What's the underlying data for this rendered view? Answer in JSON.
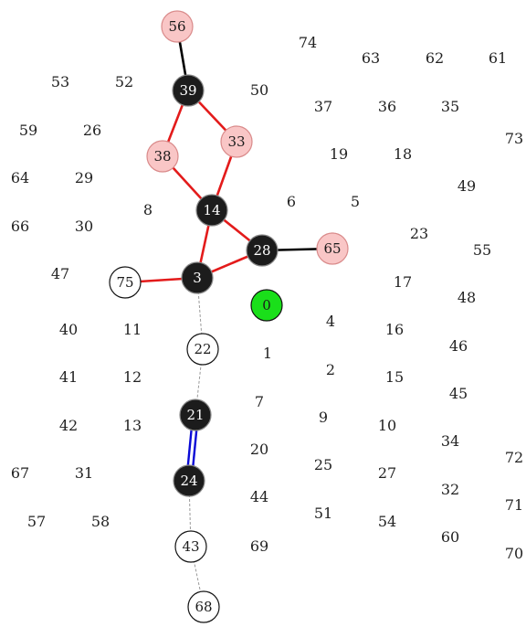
{
  "colors": {
    "black_node": "#1c1c1c",
    "pink_node": "#f9c6c6",
    "pink_stroke": "#d98a8a",
    "green_node": "#1adf1a",
    "white_node": "#ffffff",
    "red_edge": "#e31b1b",
    "blue_edge": "#0a0ad6",
    "dashed_edge": "#9a9a9a"
  },
  "nodes": [
    {
      "id": "56",
      "style": "pink"
    },
    {
      "id": "39",
      "style": "black"
    },
    {
      "id": "38",
      "style": "pink"
    },
    {
      "id": "33",
      "style": "pink"
    },
    {
      "id": "14",
      "style": "black"
    },
    {
      "id": "28",
      "style": "black"
    },
    {
      "id": "65",
      "style": "pink"
    },
    {
      "id": "3",
      "style": "black"
    },
    {
      "id": "75",
      "style": "white"
    },
    {
      "id": "0",
      "style": "green"
    },
    {
      "id": "22",
      "style": "white"
    },
    {
      "id": "21",
      "style": "black"
    },
    {
      "id": "24",
      "style": "black"
    },
    {
      "id": "43",
      "style": "white"
    },
    {
      "id": "68",
      "style": "white"
    }
  ],
  "edges": [
    {
      "from": "56",
      "to": "39",
      "kind": "black"
    },
    {
      "from": "39",
      "to": "38",
      "kind": "red"
    },
    {
      "from": "39",
      "to": "33",
      "kind": "red"
    },
    {
      "from": "38",
      "to": "14",
      "kind": "red"
    },
    {
      "from": "33",
      "to": "14",
      "kind": "red"
    },
    {
      "from": "14",
      "to": "28",
      "kind": "red"
    },
    {
      "from": "14",
      "to": "3",
      "kind": "red"
    },
    {
      "from": "28",
      "to": "3",
      "kind": "red"
    },
    {
      "from": "28",
      "to": "65",
      "kind": "black"
    },
    {
      "from": "3",
      "to": "75",
      "kind": "red"
    },
    {
      "from": "3",
      "to": "22",
      "kind": "dashed"
    },
    {
      "from": "22",
      "to": "21",
      "kind": "dashed"
    },
    {
      "from": "21",
      "to": "24",
      "kind": "double-blue"
    },
    {
      "from": "24",
      "to": "43",
      "kind": "dashed"
    },
    {
      "from": "43",
      "to": "68",
      "kind": "dashed"
    }
  ],
  "labels": [
    "74",
    "63",
    "62",
    "61",
    "53",
    "52",
    "50",
    "37",
    "36",
    "35",
    "59",
    "26",
    "73",
    "19",
    "18",
    "64",
    "29",
    "49",
    "8",
    "6",
    "5",
    "66",
    "30",
    "23",
    "55",
    "47",
    "17",
    "48",
    "40",
    "11",
    "4",
    "16",
    "46",
    "1",
    "41",
    "12",
    "2",
    "15",
    "45",
    "7",
    "42",
    "13",
    "9",
    "10",
    "34",
    "72",
    "20",
    "67",
    "31",
    "25",
    "27",
    "32",
    "71",
    "44",
    "57",
    "58",
    "51",
    "54",
    "60",
    "69",
    "70"
  ]
}
